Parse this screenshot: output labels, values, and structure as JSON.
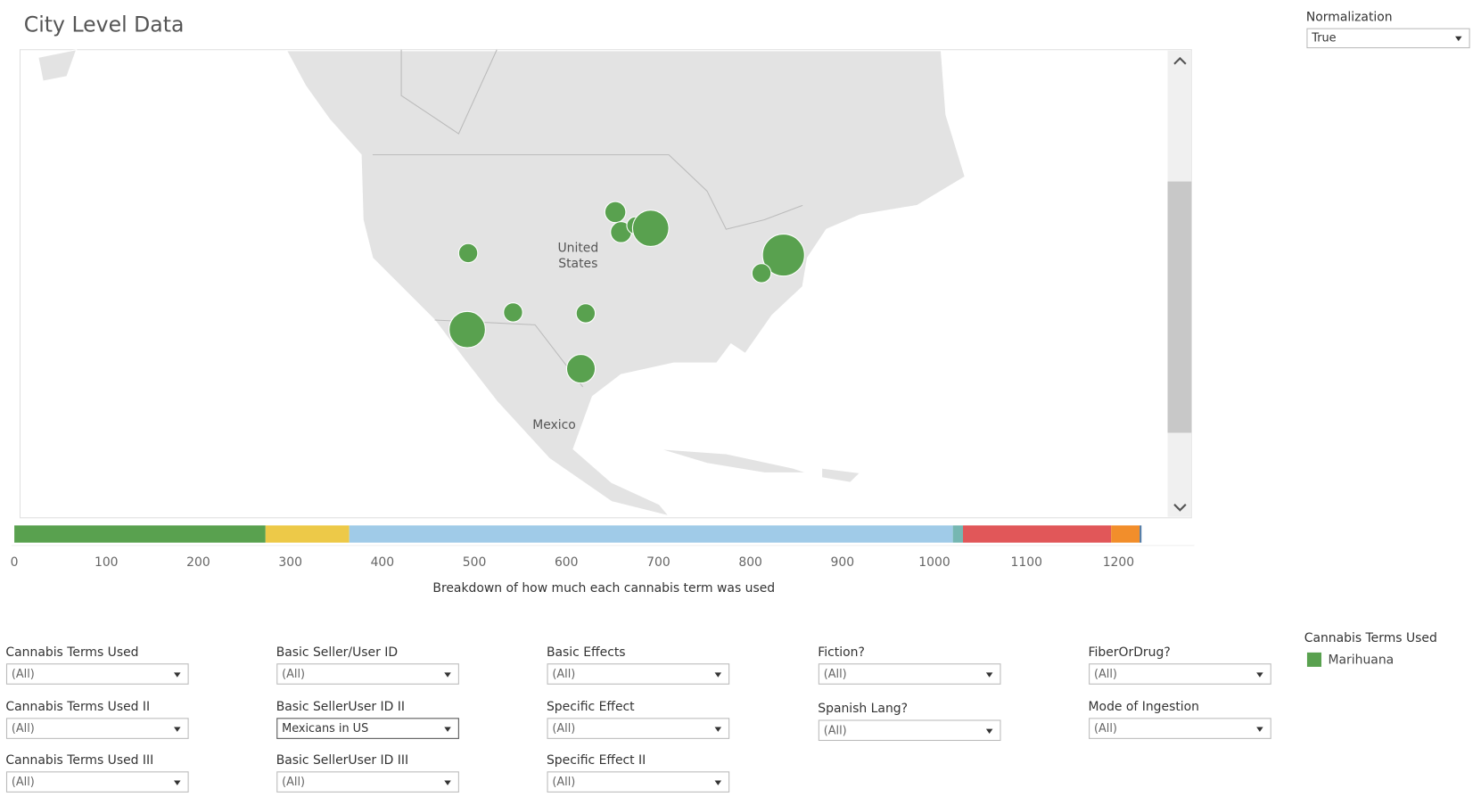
{
  "header": {
    "title": "City Level Data"
  },
  "normalization": {
    "label": "Normalization",
    "value": "True"
  },
  "map": {
    "labels": [
      "United",
      "States",
      "Mexico"
    ]
  },
  "chart_data": {
    "type": "bar",
    "stacked": true,
    "orientation": "horizontal",
    "series": [
      {
        "color": "#59a14f",
        "values": [
          273
        ]
      },
      {
        "color": "#edc948",
        "values": [
          91
        ]
      },
      {
        "color": "#a0cbe8",
        "values": [
          656
        ]
      },
      {
        "color": "#76b7b2",
        "values": [
          11
        ]
      },
      {
        "color": "#e15759",
        "values": [
          161
        ]
      },
      {
        "color": "#f28e2b",
        "values": [
          31
        ]
      },
      {
        "color": "#4e79a7",
        "values": [
          2
        ]
      }
    ],
    "xlim": [
      0,
      1280
    ],
    "xticks": [
      0,
      100,
      200,
      300,
      400,
      500,
      600,
      700,
      800,
      900,
      1000,
      1100,
      1200
    ],
    "xlabel": "Breakdown of how much each cannabis term was used"
  },
  "legend": {
    "title": "Cannabis Terms Used",
    "items": [
      {
        "name": "Marihuana",
        "color": "#59a14f"
      }
    ]
  },
  "filters": [
    [
      {
        "label": "Cannabis Terms Used",
        "value": "(All)"
      },
      {
        "label": "Cannabis Terms Used II",
        "value": "(All)"
      },
      {
        "label": "Cannabis Terms Used III",
        "value": "(All)"
      }
    ],
    [
      {
        "label": "Basic Seller/User ID",
        "value": "(All)"
      },
      {
        "label": "Basic SellerUser ID II",
        "value": "Mexicans in US"
      },
      {
        "label": "Basic SellerUser ID III",
        "value": "(All)"
      }
    ],
    [
      {
        "label": "Basic Effects",
        "value": "(All)"
      },
      {
        "label": "Specific Effect",
        "value": "(All)"
      },
      {
        "label": "Specific Effect II",
        "value": "(All)"
      }
    ],
    [
      {
        "label": "Fiction?",
        "value": "(All)"
      },
      {
        "label": "Spanish Lang?",
        "value": "(All)"
      }
    ],
    [
      {
        "label": "FiberOrDrug?",
        "value": "(All)"
      },
      {
        "label": "Mode of Ingestion",
        "value": "(All)"
      }
    ]
  ]
}
